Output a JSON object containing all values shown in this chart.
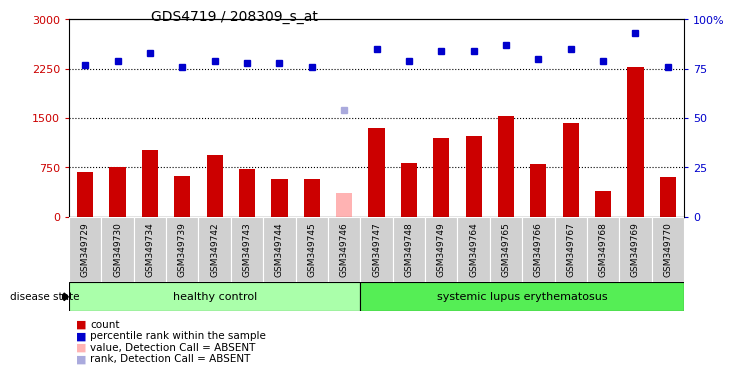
{
  "title": "GDS4719 / 208309_s_at",
  "samples": [
    "GSM349729",
    "GSM349730",
    "GSM349734",
    "GSM349739",
    "GSM349742",
    "GSM349743",
    "GSM349744",
    "GSM349745",
    "GSM349746",
    "GSM349747",
    "GSM349748",
    "GSM349749",
    "GSM349764",
    "GSM349765",
    "GSM349766",
    "GSM349767",
    "GSM349768",
    "GSM349769",
    "GSM349770"
  ],
  "bar_values": [
    680,
    760,
    1020,
    620,
    940,
    720,
    580,
    580,
    null,
    1350,
    820,
    1200,
    1220,
    1530,
    800,
    1430,
    400,
    2280,
    610
  ],
  "absent_bar_value": 370,
  "absent_bar_index": 8,
  "bar_color": "#cc0000",
  "absent_bar_color": "#ffb3b3",
  "dot_values_pct": [
    77,
    79,
    83,
    76,
    79,
    78,
    78,
    76,
    null,
    85,
    79,
    84,
    84,
    87,
    80,
    85,
    79,
    93,
    76
  ],
  "absent_dot_pct": 54,
  "absent_dot_index": 8,
  "dot_color": "#0000cc",
  "absent_dot_color": "#aaaadd",
  "ylim_left": [
    0,
    3000
  ],
  "ylim_right": [
    0,
    100
  ],
  "yticks_left": [
    0,
    750,
    1500,
    2250,
    3000
  ],
  "yticks_right": [
    0,
    25,
    50,
    75,
    100
  ],
  "ytick_labels_right": [
    "0",
    "25",
    "50",
    "75",
    "100%"
  ],
  "hlines": [
    750,
    1500,
    2250
  ],
  "n_healthy": 9,
  "n_sle": 10,
  "disease_state_label": "disease state",
  "healthy_label": "healthy control",
  "sle_label": "systemic lupus erythematosus",
  "legend_items": [
    {
      "label": "count",
      "color": "#cc0000"
    },
    {
      "label": "percentile rank within the sample",
      "color": "#0000cc"
    },
    {
      "label": "value, Detection Call = ABSENT",
      "color": "#ffb3b3"
    },
    {
      "label": "rank, Detection Call = ABSENT",
      "color": "#aaaadd"
    }
  ],
  "left_tick_color": "#cc0000",
  "right_tick_color": "#0000cc",
  "plot_bg_color": "#ffffff",
  "healthy_bg": "#aaffaa",
  "sle_bg": "#55ee55",
  "tick_label_bg": "#d0d0d0",
  "bar_width": 0.5
}
